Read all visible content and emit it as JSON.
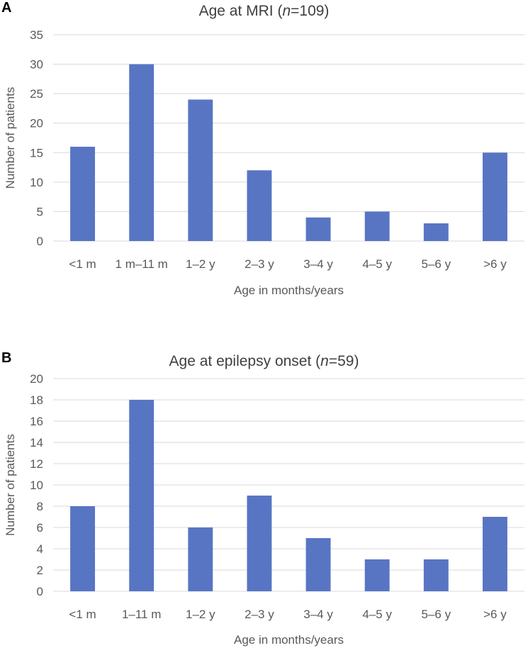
{
  "chart_data": [
    {
      "panel_label": "A",
      "type": "bar",
      "title_prefix": "Age at MRI (",
      "title_n_symbol": "n",
      "title_suffix": "=109)",
      "categories": [
        "<1 m",
        "1 m–11 m",
        "1–2 y",
        "2–3 y",
        "3–4 y",
        "4–5 y",
        "5–6 y",
        ">6 y"
      ],
      "values": [
        16,
        30,
        24,
        12,
        4,
        5,
        3,
        15
      ],
      "xlabel": "Age in months/years",
      "ylabel": "Number of patients",
      "ylim": [
        0,
        35
      ],
      "yticks": [
        0,
        5,
        10,
        15,
        20,
        25,
        30,
        35
      ],
      "grid": true,
      "bar_color": "#5875C4"
    },
    {
      "panel_label": "B",
      "type": "bar",
      "title_prefix": "Age at epilepsy onset (",
      "title_n_symbol": "n",
      "title_suffix": "=59)",
      "categories": [
        "<1 m",
        "1–11 m",
        "1–2 y",
        "2–3 y",
        "3–4 y",
        "4–5 y",
        "5–6 y",
        ">6 y"
      ],
      "values": [
        8,
        18,
        6,
        9,
        5,
        3,
        3,
        7
      ],
      "xlabel": "Age in months/years",
      "ylabel": "Number of patients",
      "ylim": [
        0,
        20
      ],
      "yticks": [
        0,
        2,
        4,
        6,
        8,
        10,
        12,
        14,
        16,
        18,
        20
      ],
      "grid": true,
      "bar_color": "#5875C4"
    }
  ]
}
